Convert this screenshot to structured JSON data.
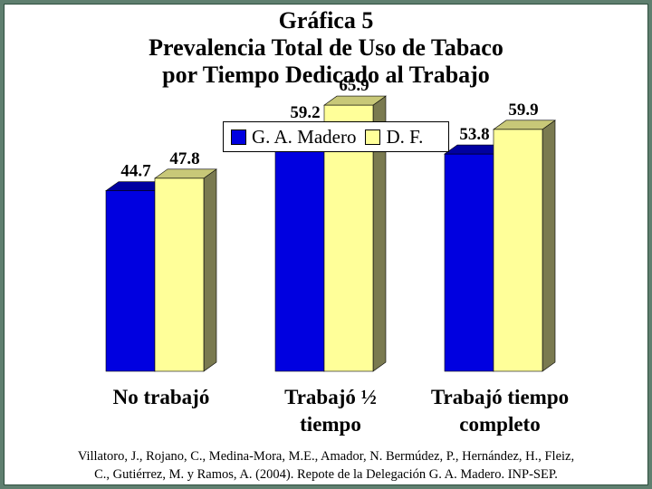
{
  "chart_data": {
    "type": "bar",
    "title_lines": [
      "Gráfica 5",
      "Prevalencia Total de Uso de Tabaco",
      "por Tiempo Dedicado al Trabajo"
    ],
    "categories": [
      [
        "No trabajó"
      ],
      [
        "Trabajó ½",
        "tiempo"
      ],
      [
        "Trabajó tiempo",
        "completo"
      ]
    ],
    "series": [
      {
        "name": "G. A. Madero",
        "values": [
          44.7,
          59.2,
          53.8
        ],
        "color": "#0000e0",
        "top_color": "#0000a0",
        "side_color": "#00006a"
      },
      {
        "name": "D. F.",
        "values": [
          47.8,
          65.9,
          59.9
        ],
        "color": "#ffff99",
        "top_color": "#c8c878",
        "side_color": "#7a7a50"
      }
    ],
    "data_labels": [
      "44.7",
      "47.8",
      "59.2",
      "65.9",
      "53.8",
      "59.9"
    ],
    "legend_position": "top-center",
    "grid": false,
    "three_d": true
  },
  "source": {
    "line1": "Villatoro, J., Rojano, C., Medina-Mora, M.E., Amador, N. Bermúdez, P., Hernández, H., Fleiz,",
    "line2": "C., Gutiérrez, M. y Ramos, A. (2004). Repote de la Delegación G. A. Madero. INP-SEP."
  }
}
